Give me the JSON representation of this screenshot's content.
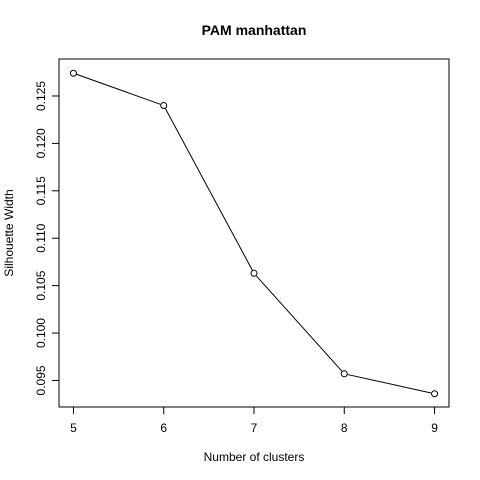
{
  "chart_data": {
    "type": "line",
    "title": "PAM manhattan",
    "xlabel": "Number of clusters",
    "ylabel": "Silhouette Width",
    "x": [
      5,
      6,
      7,
      8,
      9
    ],
    "series": [
      {
        "values": [
          0.1274,
          0.124,
          0.1063,
          0.0957,
          0.0936
        ]
      }
    ],
    "xticks": [
      "5",
      "6",
      "7",
      "8",
      "9"
    ],
    "yticks": [
      "0.095",
      "0.100",
      "0.105",
      "0.110",
      "0.115",
      "0.120",
      "0.125"
    ],
    "xlim": [
      4.84,
      9.16
    ],
    "ylim": [
      0.0922,
      0.1289
    ],
    "grid": false,
    "colors": {
      "line": "#000000",
      "marker": "#000000",
      "frame": "#000000"
    }
  }
}
